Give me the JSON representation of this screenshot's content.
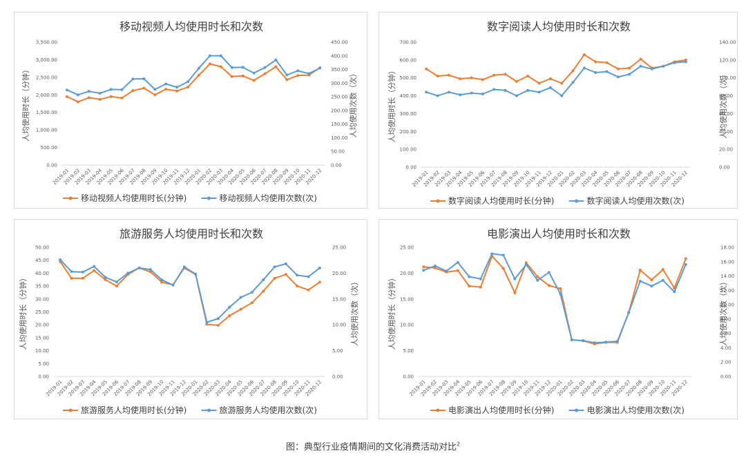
{
  "months": [
    "2019-01",
    "2019-02",
    "2019-03",
    "2019-04",
    "2019-05",
    "2019-06",
    "2019-07",
    "2019-08",
    "2019-09",
    "2019-10",
    "2019-11",
    "2019-12",
    "2020-01",
    "2020-02",
    "2020-03",
    "2020-04",
    "2020-05",
    "2020-06",
    "2020-07",
    "2020-08",
    "2020-09",
    "2020-10",
    "2020-11",
    "2020-12"
  ],
  "caption": "图：典型行业疫情期间的文化消费活动对比",
  "caption_sup": "2",
  "colors": {
    "duration": "#ED7D31",
    "count": "#5B9BD5"
  },
  "chart_data": [
    {
      "type": "line",
      "title": "移动视频人均使用时长和次数",
      "ylabel": "人均使用时长（分钟）",
      "y2label": "人均使用次数（次）",
      "ylim": [
        0,
        3500
      ],
      "ystep": 500,
      "y2lim": [
        0,
        450
      ],
      "y2step": 50,
      "legend": "bottom",
      "series": [
        {
          "name": "移动视频人均使用时长(分钟)",
          "axis": "left",
          "values": [
            1950,
            1800,
            1920,
            1870,
            1950,
            1910,
            2120,
            2190,
            2000,
            2160,
            2110,
            2220,
            2560,
            2880,
            2800,
            2520,
            2540,
            2410,
            2600,
            2800,
            2430,
            2550,
            2560,
            2770
          ]
        },
        {
          "name": "移动视频人均使用次数(次)",
          "axis": "right",
          "values": [
            275,
            257,
            270,
            263,
            277,
            276,
            315,
            316,
            277,
            297,
            285,
            305,
            355,
            400,
            400,
            357,
            358,
            337,
            357,
            385,
            330,
            345,
            335,
            355
          ]
        }
      ]
    },
    {
      "type": "line",
      "title": "数字阅读人均使用时长和次数",
      "ylabel": "人均使用时长（分钟）",
      "y2label": "人均使用次数（次）",
      "ylim": [
        0,
        700
      ],
      "ystep": 100,
      "y2lim": [
        0,
        140
      ],
      "y2step": 20,
      "legend": "bottom",
      "series": [
        {
          "name": "数字阅读人均使用时长(分钟)",
          "axis": "left",
          "values": [
            550,
            510,
            515,
            495,
            500,
            490,
            515,
            520,
            480,
            510,
            470,
            495,
            470,
            540,
            630,
            590,
            585,
            550,
            555,
            605,
            555,
            565,
            590,
            600
          ]
        },
        {
          "name": "数字阅读人均使用次数(次)",
          "axis": "right",
          "values": [
            84,
            80,
            84,
            81,
            83,
            82,
            87,
            86,
            80,
            86,
            84,
            89,
            80,
            95,
            111,
            106,
            107,
            101,
            104,
            113,
            110,
            113,
            117,
            118
          ]
        }
      ]
    },
    {
      "type": "line",
      "title": "旅游服务人均使用时长和次数",
      "ylabel": "人均使用时长（分钟）",
      "y2label": "人均使用次数（次）",
      "ylim": [
        0,
        50
      ],
      "ystep": 5,
      "y2lim": [
        0,
        25
      ],
      "y2step": 5,
      "legend": "bottom",
      "series": [
        {
          "name": "旅游服务人均使用时长(分钟)",
          "axis": "left",
          "values": [
            44.5,
            38,
            38,
            41,
            37.5,
            35,
            39.5,
            42,
            40.5,
            36.5,
            35.5,
            42,
            39.5,
            20.2,
            19.8,
            23.5,
            26,
            28.5,
            33,
            38,
            39.5,
            35,
            33.5,
            36.5
          ]
        },
        {
          "name": "旅游服务人均使用次数(次)",
          "axis": "right",
          "values": [
            22.6,
            20.3,
            20.2,
            21.3,
            19.2,
            18.3,
            20,
            21,
            20.7,
            18.7,
            17.7,
            21.2,
            19.8,
            10.5,
            11.2,
            13.4,
            15.3,
            16.3,
            18.7,
            21.2,
            21.8,
            19.6,
            19.3,
            21
          ]
        }
      ]
    },
    {
      "type": "line",
      "title": "电影演出人均使用时长和次数",
      "ylabel": "人均使用时长（分钟）",
      "y2label": "人均使用次数（次）",
      "ylim": [
        0,
        25
      ],
      "ystep": 5,
      "y2lim": [
        0,
        18
      ],
      "y2step": 2,
      "legend": "bottom",
      "series": [
        {
          "name": "电影演出人均使用时长(分钟)",
          "axis": "left",
          "values": [
            21.2,
            21,
            20.2,
            20.5,
            17.5,
            17.3,
            23.3,
            20.9,
            16.2,
            22,
            19.3,
            17.6,
            17,
            7.1,
            6.9,
            6.3,
            6.6,
            6.6,
            12.4,
            20.6,
            18.7,
            20.7,
            17.1,
            22.8
          ]
        },
        {
          "name": "电影演出人均使用次数(次)",
          "axis": "right",
          "values": [
            14.8,
            15.4,
            14.7,
            15.9,
            13.9,
            13.6,
            17.1,
            16.9,
            13.6,
            15.6,
            13.4,
            14.5,
            11.5,
            5.1,
            5,
            4.7,
            4.8,
            4.9,
            8.9,
            13.3,
            12.6,
            13.4,
            11.8,
            15.6
          ]
        }
      ]
    }
  ]
}
